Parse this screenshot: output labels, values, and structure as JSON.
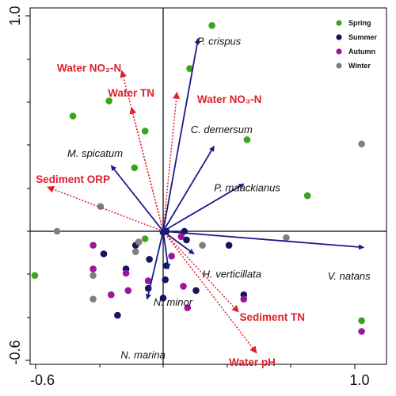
{
  "chart_data": {
    "type": "scatter",
    "xlim": [
      -0.62,
      1.0
    ],
    "ylim": [
      -0.6,
      1.0
    ],
    "x_tick_labels": [
      "-0.6",
      "1.0"
    ],
    "y_tick_labels": [
      "1.0",
      "-0.6"
    ],
    "reference_lines": {
      "x": 0,
      "y": 0
    },
    "legend": {
      "placement": "top-right",
      "entries": [
        {
          "name": "Spring",
          "color": "#3aa31f"
        },
        {
          "name": "Summer",
          "color": "#15145e"
        },
        {
          "name": "Autumn",
          "color": "#9b169b"
        },
        {
          "name": "Winter",
          "color": "#7f7f7f"
        }
      ]
    },
    "species_arrows": {
      "color": "#1a1a8c",
      "style": "solid",
      "items": [
        {
          "label": "P. crispus",
          "x": 0.165,
          "y": 0.895,
          "lx": 0.16,
          "ly": 0.865,
          "anchor": "start"
        },
        {
          "label": "M. spicatum",
          "x": -0.245,
          "y": 0.305,
          "lx": -0.19,
          "ly": 0.345,
          "anchor": "end"
        },
        {
          "label": "C. demersum",
          "x": 0.24,
          "y": 0.395,
          "lx": 0.13,
          "ly": 0.455,
          "anchor": "start"
        },
        {
          "label": "P. maackianus",
          "x": 0.38,
          "y": 0.22,
          "lx": 0.24,
          "ly": 0.185,
          "anchor": "start"
        },
        {
          "label": "V. natans",
          "x": 0.945,
          "y": -0.075,
          "lx": 0.775,
          "ly": -0.225,
          "anchor": "start"
        },
        {
          "label": "H. verticillata",
          "x": 0.145,
          "y": -0.105,
          "lx": 0.185,
          "ly": -0.215,
          "anchor": "start"
        },
        {
          "label": "N. minor",
          "x": 0.025,
          "y": -0.175,
          "lx": -0.045,
          "ly": -0.345,
          "anchor": "start"
        },
        {
          "label": "N. marina",
          "x": -0.075,
          "y": -0.315,
          "lx": -0.2,
          "ly": -0.59,
          "anchor": "start"
        }
      ]
    },
    "environment_arrows": {
      "color": "#e0202b",
      "style": "dotted",
      "items": [
        {
          "label": "Water NO₂-N",
          "x": -0.195,
          "y": 0.745,
          "lx": -0.5,
          "ly": 0.74,
          "anchor": "start"
        },
        {
          "label": "Water TN",
          "x": -0.15,
          "y": 0.575,
          "lx": -0.26,
          "ly": 0.625,
          "anchor": "start"
        },
        {
          "label": "Water NO₃-N",
          "x": 0.065,
          "y": 0.645,
          "lx": 0.16,
          "ly": 0.595,
          "anchor": "start"
        },
        {
          "label": "Sediment ORP",
          "x": -0.545,
          "y": 0.205,
          "lx": -0.6,
          "ly": 0.225,
          "anchor": "start"
        },
        {
          "label": "Sediment TN",
          "x": 0.355,
          "y": -0.375,
          "lx": 0.36,
          "ly": -0.415,
          "anchor": "start"
        },
        {
          "label": "Water pH",
          "x": 0.44,
          "y": -0.565,
          "lx": 0.31,
          "ly": -0.625,
          "anchor": "start"
        }
      ]
    },
    "series": [
      {
        "name": "Spring",
        "color": "#3aa31f",
        "points": [
          [
            0.23,
            0.955
          ],
          [
            0.125,
            0.755
          ],
          [
            -0.255,
            0.605
          ],
          [
            -0.425,
            0.535
          ],
          [
            -0.085,
            0.465
          ],
          [
            0.395,
            0.425
          ],
          [
            -0.135,
            0.295
          ],
          [
            0.68,
            0.165
          ],
          [
            -0.085,
            -0.035
          ],
          [
            -0.605,
            -0.205
          ],
          [
            0.935,
            -0.415
          ]
        ]
      },
      {
        "name": "Summer",
        "color": "#15145e",
        "points": [
          [
            0.0,
            -0.005
          ],
          [
            0.015,
            0.0
          ],
          [
            0.1,
            0.0
          ],
          [
            0.11,
            -0.04
          ],
          [
            0.31,
            -0.065
          ],
          [
            -0.13,
            -0.065
          ],
          [
            -0.28,
            -0.105
          ],
          [
            -0.065,
            -0.13
          ],
          [
            0.015,
            -0.16
          ],
          [
            -0.175,
            -0.175
          ],
          [
            0.01,
            -0.225
          ],
          [
            -0.07,
            -0.265
          ],
          [
            0.155,
            -0.275
          ],
          [
            0.38,
            -0.295
          ],
          [
            0.0,
            -0.31
          ],
          [
            -0.215,
            -0.39
          ]
        ]
      },
      {
        "name": "Autumn",
        "color": "#9b169b",
        "points": [
          [
            0.085,
            -0.025
          ],
          [
            -0.33,
            -0.065
          ],
          [
            0.04,
            -0.115
          ],
          [
            -0.33,
            -0.175
          ],
          [
            -0.175,
            -0.195
          ],
          [
            -0.07,
            -0.23
          ],
          [
            0.095,
            -0.255
          ],
          [
            -0.165,
            -0.275
          ],
          [
            -0.245,
            -0.295
          ],
          [
            0.38,
            -0.315
          ],
          [
            0.115,
            -0.355
          ],
          [
            0.935,
            -0.465
          ]
        ]
      },
      {
        "name": "Winter",
        "color": "#7f7f7f",
        "points": [
          [
            0.935,
            0.405
          ],
          [
            -0.295,
            0.115
          ],
          [
            -0.5,
            0.0
          ],
          [
            0.58,
            -0.03
          ],
          [
            -0.115,
            -0.05
          ],
          [
            0.185,
            -0.065
          ],
          [
            -0.13,
            -0.095
          ],
          [
            -0.33,
            -0.205
          ],
          [
            -0.33,
            -0.315
          ]
        ]
      }
    ]
  }
}
